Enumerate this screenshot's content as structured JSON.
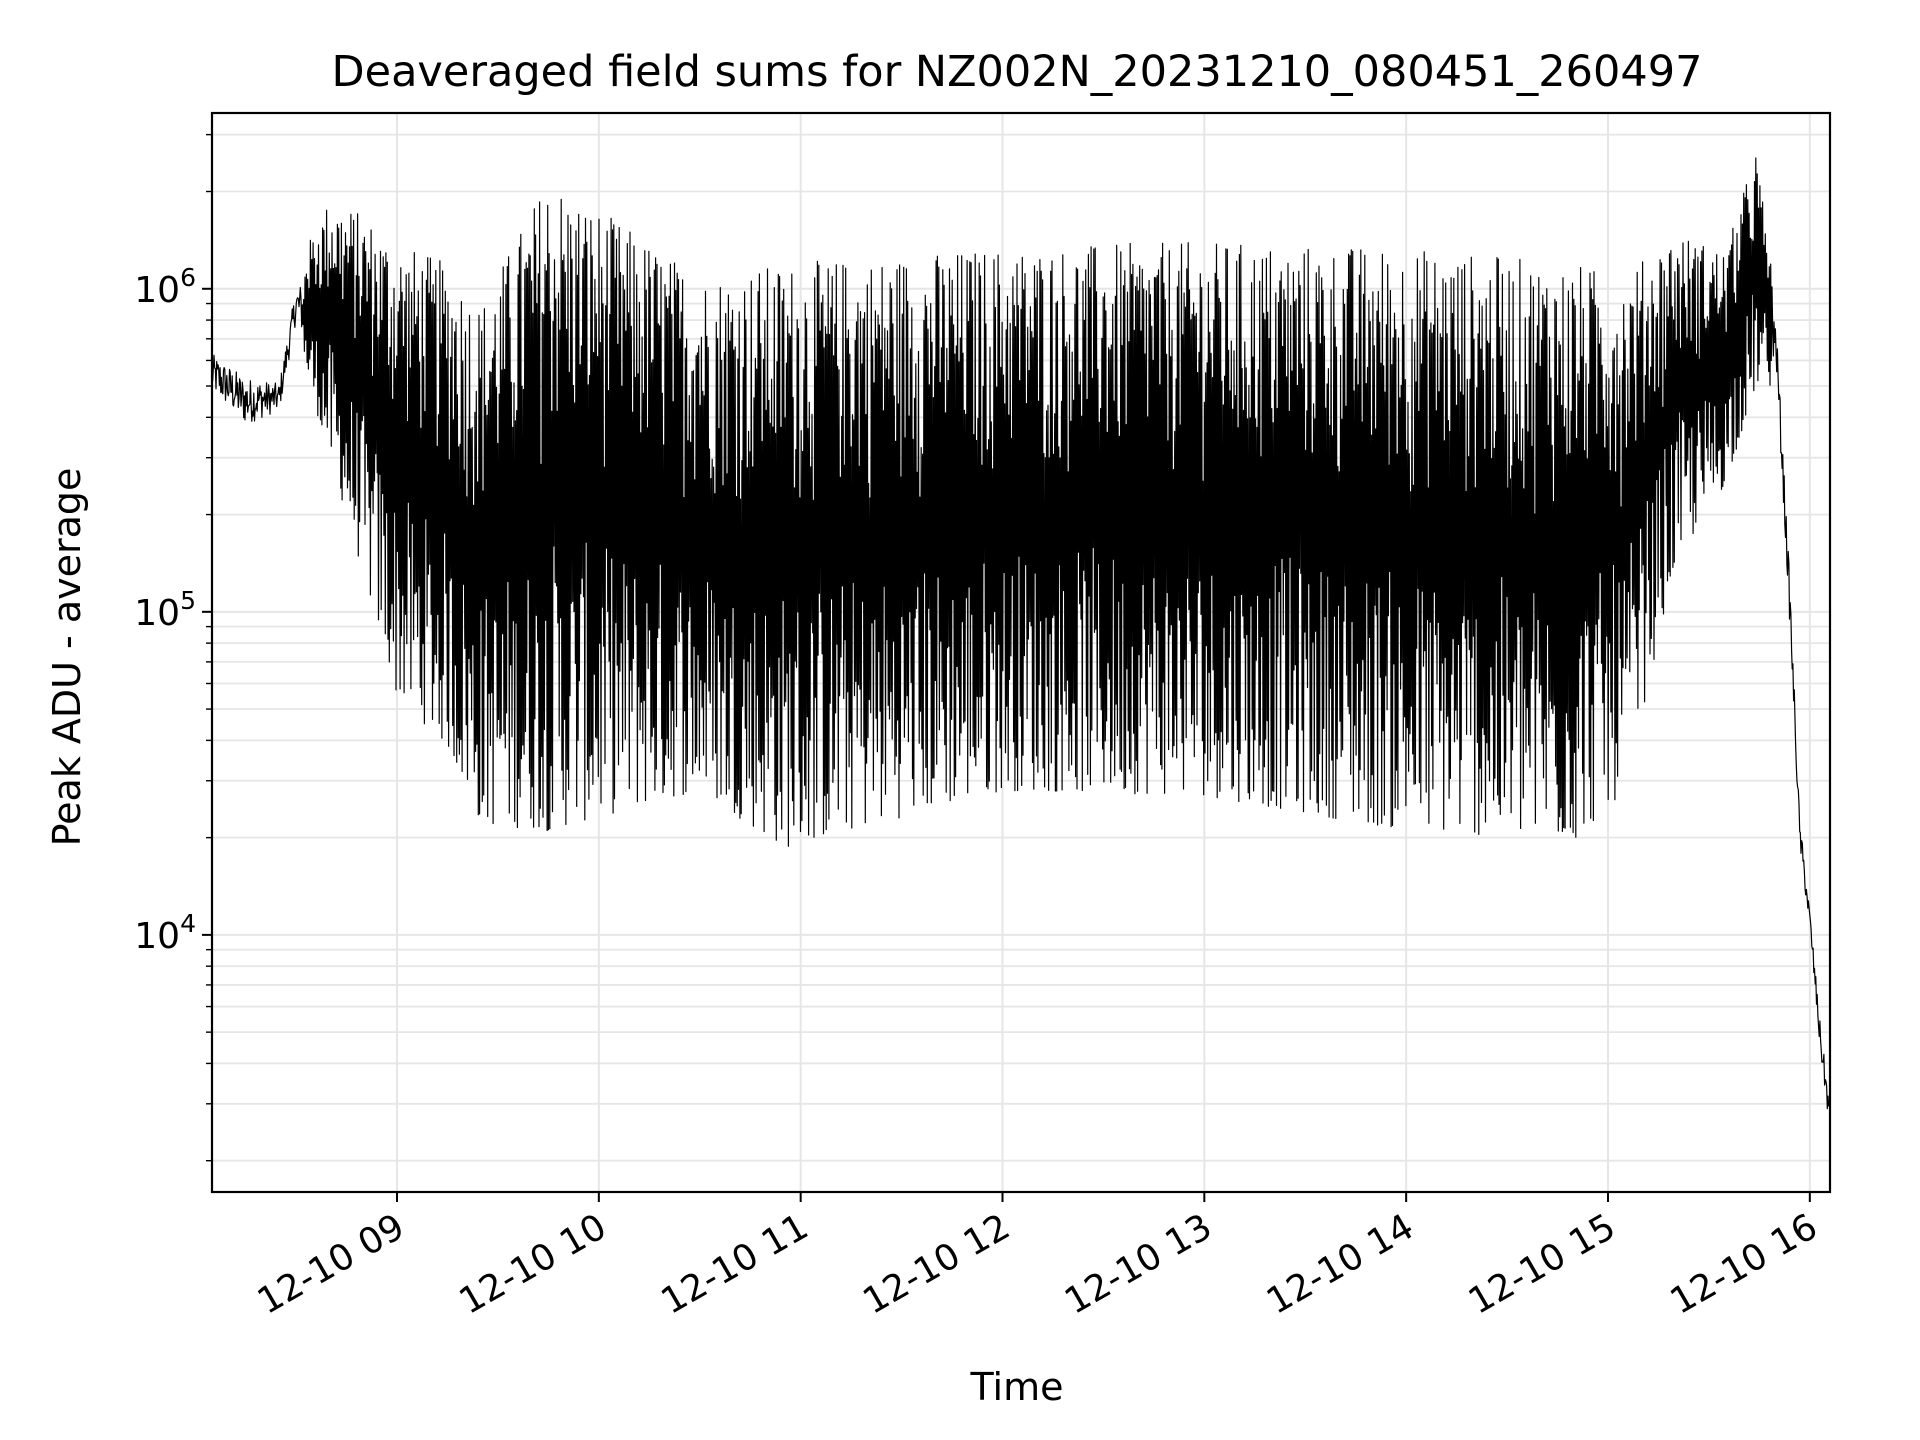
{
  "chart_data": {
    "type": "line",
    "title": "Deaveraged field sums for NZ002N_20231210_080451_260497",
    "xlabel": "Time",
    "ylabel": "Peak ADU - average",
    "yscale": "log",
    "ylim": [
      1600,
      3500000
    ],
    "xlim": [
      "2023-12-10 08:05",
      "2023-12-10 16:06"
    ],
    "grid": true,
    "legend": "none",
    "line_color": "#000000",
    "grid_color": "#e6e6e6",
    "x_ticks": [
      {
        "value": "2023-12-10 09:00",
        "label": "12-10 09"
      },
      {
        "value": "2023-12-10 10:00",
        "label": "12-10 10"
      },
      {
        "value": "2023-12-10 11:00",
        "label": "12-10 11"
      },
      {
        "value": "2023-12-10 12:00",
        "label": "12-10 12"
      },
      {
        "value": "2023-12-10 13:00",
        "label": "12-10 13"
      },
      {
        "value": "2023-12-10 14:00",
        "label": "12-10 14"
      },
      {
        "value": "2023-12-10 15:00",
        "label": "12-10 15"
      },
      {
        "value": "2023-12-10 16:00",
        "label": "12-10 16"
      }
    ],
    "y_ticks": [
      {
        "value": 10000,
        "base": "10",
        "exp": "4"
      },
      {
        "value": 100000,
        "base": "10",
        "exp": "5"
      },
      {
        "value": 1000000,
        "base": "10",
        "exp": "6"
      }
    ],
    "envelope": {
      "note_points": [
        {
          "t": "2023-12-10 08:05",
          "low": 420000,
          "high": 720000
        },
        {
          "t": "2023-12-10 08:15",
          "low": 320000,
          "high": 630000
        },
        {
          "t": "2023-12-10 08:25",
          "low": 380000,
          "high": 560000
        },
        {
          "t": "2023-12-10 08:30",
          "low": 700000,
          "high": 1150000
        },
        {
          "t": "2023-12-10 08:40",
          "low": 300000,
          "high": 1900000
        },
        {
          "t": "2023-12-10 08:50",
          "low": 130000,
          "high": 1700000
        },
        {
          "t": "2023-12-10 09:00",
          "low": 55000,
          "high": 1400000
        },
        {
          "t": "2023-12-10 09:15",
          "low": 38000,
          "high": 1200000
        },
        {
          "t": "2023-12-10 09:25",
          "low": 22000,
          "high": 900000
        },
        {
          "t": "2023-12-10 09:45",
          "low": 21000,
          "high": 2250000
        },
        {
          "t": "2023-12-10 10:30",
          "low": 28000,
          "high": 1100000
        },
        {
          "t": "2023-12-10 10:55",
          "low": 18500,
          "high": 1200000
        },
        {
          "t": "2023-12-10 12:00",
          "low": 28000,
          "high": 1350000
        },
        {
          "t": "2023-12-10 13:00",
          "low": 27000,
          "high": 1400000
        },
        {
          "t": "2023-12-10 14:00",
          "low": 21000,
          "high": 1350000
        },
        {
          "t": "2023-12-10 14:50",
          "low": 19500,
          "high": 1200000
        },
        {
          "t": "2023-12-10 15:05",
          "low": 28000,
          "high": 1100000
        },
        {
          "t": "2023-12-10 15:20",
          "low": 140000,
          "high": 1500000
        },
        {
          "t": "2023-12-10 15:35",
          "low": 250000,
          "high": 1300000
        },
        {
          "t": "2023-12-10 15:44",
          "low": 500000,
          "high": 2700000
        },
        {
          "t": "2023-12-10 15:50",
          "low": 500000,
          "high": 900000
        },
        {
          "t": "2023-12-10 15:54",
          "low": 80000,
          "high": 150000
        },
        {
          "t": "2023-12-10 15:57",
          "low": 17000,
          "high": 25000
        },
        {
          "t": "2023-12-10 16:00",
          "low": 9500,
          "high": 13000
        },
        {
          "t": "2023-12-10 16:03",
          "low": 4000,
          "high": 6000
        },
        {
          "t": "2023-12-10 16:06",
          "low": 2200,
          "high": 3300
        }
      ]
    }
  }
}
